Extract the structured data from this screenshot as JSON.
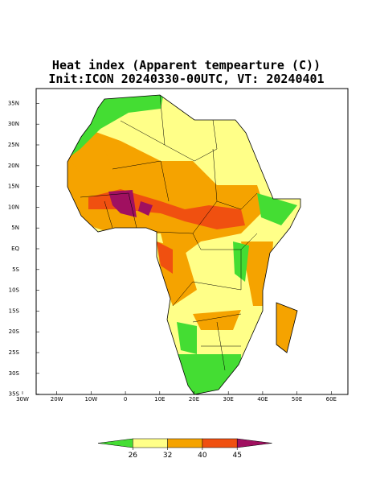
{
  "map": {
    "title": [
      "Heat index (Apparent tempearture (C))",
      "Init:ICON 20240330-00UTC, VT: 20240401"
    ],
    "lat_labels": [
      {
        "value": 35,
        "label": "35N"
      },
      {
        "value": 30,
        "label": "30N"
      },
      {
        "value": 25,
        "label": "25N"
      },
      {
        "value": 20,
        "label": "20N"
      },
      {
        "value": 15,
        "label": "15N"
      },
      {
        "value": 10,
        "label": "10N"
      },
      {
        "value": 5,
        "label": "5N"
      },
      {
        "value": 0,
        "label": "EQ"
      },
      {
        "value": -5,
        "label": "5S"
      },
      {
        "value": -10,
        "label": "10S"
      },
      {
        "value": -15,
        "label": "15S"
      },
      {
        "value": -20,
        "label": "20S"
      },
      {
        "value": -25,
        "label": "25S"
      },
      {
        "value": -30,
        "label": "30S"
      },
      {
        "value": -35,
        "label": "35S"
      }
    ],
    "lon_labels": [
      {
        "value": -30,
        "label": "30W"
      },
      {
        "value": -20,
        "label": "20W"
      },
      {
        "value": -10,
        "label": "10W"
      },
      0,
      {
        "value": 10,
        "label": "10E"
      },
      {
        "value": 20,
        "label": "20E"
      },
      {
        "value": 30,
        "label": "30E"
      },
      {
        "value": 40,
        "label": "40E"
      },
      {
        "value": 50,
        "label": "50E"
      },
      {
        "value": 60,
        "label": "60E"
      }
    ],
    "colorbar": {
      "ticks": [
        26,
        32,
        40,
        45
      ],
      "colors": [
        "#44dd33",
        "#ffff88",
        "#f5a300",
        "#f05010",
        "#a01060"
      ]
    }
  }
}
